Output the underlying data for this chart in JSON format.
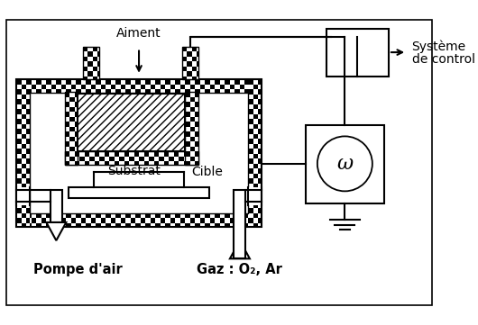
{
  "background_color": "#ffffff",
  "labels": {
    "aimant": "Aiment",
    "cible": "Cible",
    "substrat": "Substrat",
    "pompe": "Pompe d'air",
    "gaz": "Gaz : O₂, Ar",
    "systeme1": "Système",
    "systeme2": "de control"
  }
}
